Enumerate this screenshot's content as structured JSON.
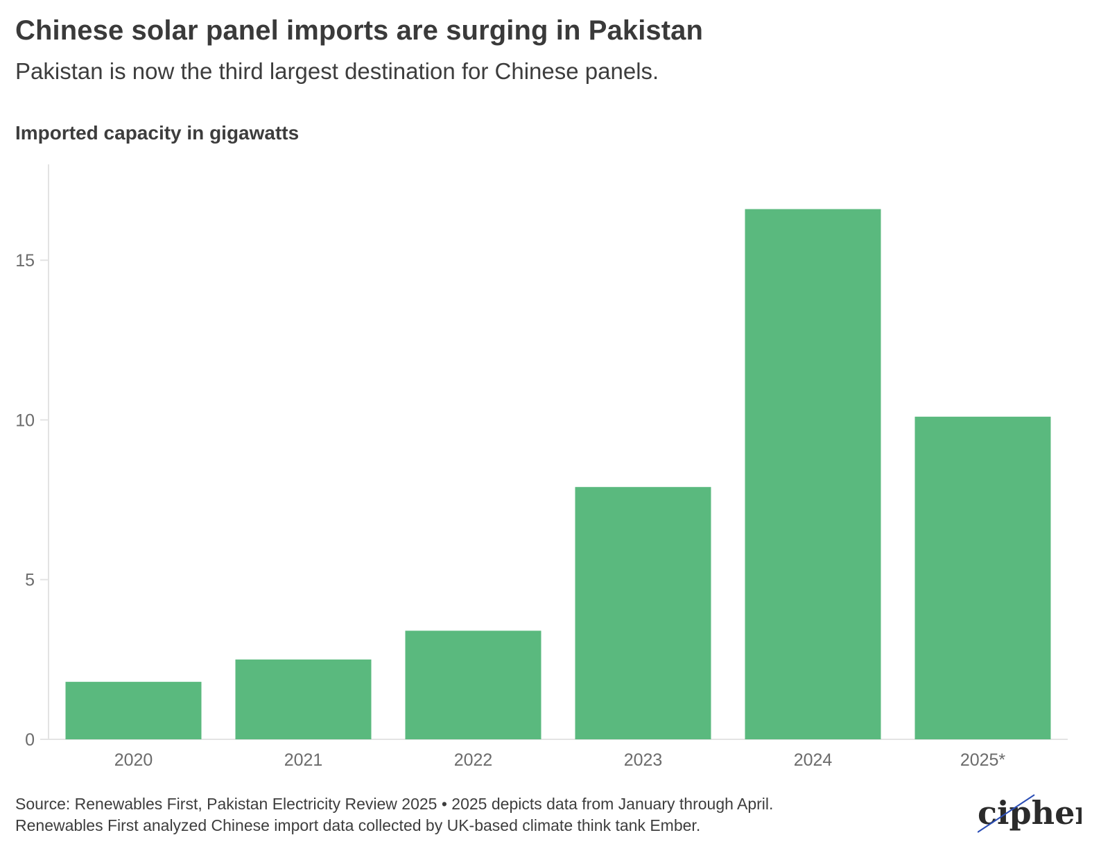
{
  "header": {
    "title": "Chinese solar panel imports are surging in Pakistan",
    "subtitle": "Pakistan is now the third largest destination for Chinese panels."
  },
  "footer": {
    "line1": "Source: Renewables First, Pakistan Electricity Review 2025 • 2025 depicts data from January through April.",
    "line2": "Renewables First analyzed Chinese import data collected by UK-based climate think tank Ember."
  },
  "brand": {
    "logo_text": "cipher"
  },
  "chart_data": {
    "type": "bar",
    "title": "Chinese solar panel imports are surging in Pakistan",
    "subtitle": "Pakistan is now the third largest destination for Chinese panels.",
    "xlabel": "",
    "ylabel": "Imported capacity in gigawatts",
    "categories": [
      "2020",
      "2021",
      "2022",
      "2023",
      "2024",
      "2025*"
    ],
    "values": [
      1.8,
      2.5,
      3.4,
      7.9,
      16.6,
      10.1
    ],
    "ylim": [
      0,
      18
    ],
    "yticks": [
      0,
      5,
      10,
      15
    ],
    "grid": false,
    "bar_color": "#5ab97e",
    "axis_color": "#e3e3e3"
  }
}
